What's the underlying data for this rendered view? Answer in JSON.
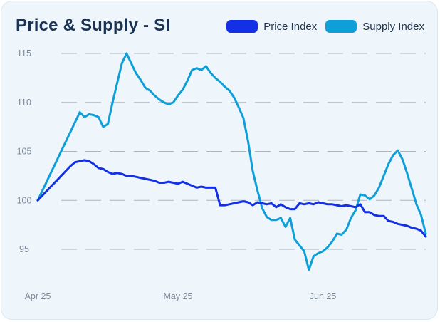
{
  "chart_data": {
    "type": "line",
    "title": "Price & Supply - SI",
    "xlabel": "",
    "ylabel": "",
    "ylim": [
      92,
      116
    ],
    "yticks": [
      95,
      100,
      105,
      110,
      115
    ],
    "xticks": [
      {
        "label": "Apr 25",
        "x": 0
      },
      {
        "label": "May 25",
        "x": 30
      },
      {
        "label": "Jun 25",
        "x": 61
      }
    ],
    "xlim": [
      0,
      90
    ],
    "grid": "horizontal dashed",
    "legend_position": "top-right",
    "series": [
      {
        "name": "Price Index",
        "color": "#1330e6",
        "points": [
          [
            0,
            100.0
          ],
          [
            1,
            100.5
          ],
          [
            2,
            101.0
          ],
          [
            3,
            101.5
          ],
          [
            4,
            102.0
          ],
          [
            5,
            102.5
          ],
          [
            6,
            103.0
          ],
          [
            7,
            103.5
          ],
          [
            8,
            103.9
          ],
          [
            9,
            104.0
          ],
          [
            10,
            104.1
          ],
          [
            11,
            104.0
          ],
          [
            12,
            103.7
          ],
          [
            13,
            103.3
          ],
          [
            14,
            103.2
          ],
          [
            15,
            102.9
          ],
          [
            16,
            102.7
          ],
          [
            17,
            102.8
          ],
          [
            18,
            102.7
          ],
          [
            19,
            102.5
          ],
          [
            20,
            102.5
          ],
          [
            21,
            102.4
          ],
          [
            22,
            102.3
          ],
          [
            23,
            102.2
          ],
          [
            24,
            102.1
          ],
          [
            25,
            102.0
          ],
          [
            26,
            101.8
          ],
          [
            27,
            101.8
          ],
          [
            28,
            101.9
          ],
          [
            29,
            101.8
          ],
          [
            30,
            101.7
          ],
          [
            31,
            101.9
          ],
          [
            32,
            101.7
          ],
          [
            33,
            101.5
          ],
          [
            34,
            101.3
          ],
          [
            35,
            101.4
          ],
          [
            36,
            101.3
          ],
          [
            37,
            101.3
          ],
          [
            38,
            101.3
          ],
          [
            39,
            99.5
          ],
          [
            40,
            99.5
          ],
          [
            41,
            99.6
          ],
          [
            42,
            99.7
          ],
          [
            43,
            99.8
          ],
          [
            44,
            99.9
          ],
          [
            45,
            99.8
          ],
          [
            46,
            99.5
          ],
          [
            47,
            99.8
          ],
          [
            48,
            99.7
          ],
          [
            49,
            99.6
          ],
          [
            50,
            99.7
          ],
          [
            51,
            99.3
          ],
          [
            52,
            99.6
          ],
          [
            53,
            99.3
          ],
          [
            54,
            99.1
          ],
          [
            55,
            99.1
          ],
          [
            56,
            99.7
          ],
          [
            57,
            99.6
          ],
          [
            58,
            99.7
          ],
          [
            59,
            99.6
          ],
          [
            60,
            99.8
          ],
          [
            61,
            99.7
          ],
          [
            62,
            99.6
          ],
          [
            63,
            99.6
          ],
          [
            64,
            99.5
          ],
          [
            65,
            99.4
          ],
          [
            66,
            99.5
          ],
          [
            67,
            99.4
          ],
          [
            68,
            99.3
          ],
          [
            69,
            99.6
          ],
          [
            70,
            98.8
          ],
          [
            71,
            98.8
          ],
          [
            72,
            98.5
          ],
          [
            73,
            98.4
          ],
          [
            74,
            98.4
          ],
          [
            75,
            97.9
          ],
          [
            76,
            97.8
          ],
          [
            77,
            97.6
          ],
          [
            78,
            97.5
          ],
          [
            79,
            97.4
          ],
          [
            80,
            97.2
          ],
          [
            81,
            97.1
          ],
          [
            82,
            96.9
          ],
          [
            83,
            96.3
          ]
        ]
      },
      {
        "name": "Supply Index",
        "color": "#0e9fd8",
        "points": [
          [
            0,
            100.0
          ],
          [
            1,
            101.0
          ],
          [
            2,
            102.0
          ],
          [
            3,
            103.0
          ],
          [
            4,
            104.0
          ],
          [
            5,
            105.0
          ],
          [
            6,
            106.0
          ],
          [
            7,
            107.0
          ],
          [
            8,
            108.0
          ],
          [
            9,
            109.0
          ],
          [
            10,
            108.5
          ],
          [
            11,
            108.8
          ],
          [
            12,
            108.7
          ],
          [
            13,
            108.5
          ],
          [
            14,
            107.5
          ],
          [
            15,
            107.8
          ],
          [
            16,
            110.0
          ],
          [
            17,
            112.0
          ],
          [
            18,
            114.0
          ],
          [
            19,
            115.0
          ],
          [
            20,
            114.0
          ],
          [
            21,
            113.0
          ],
          [
            22,
            112.3
          ],
          [
            23,
            111.5
          ],
          [
            24,
            111.2
          ],
          [
            25,
            110.7
          ],
          [
            26,
            110.3
          ],
          [
            27,
            110.0
          ],
          [
            28,
            109.8
          ],
          [
            29,
            110.0
          ],
          [
            30,
            110.7
          ],
          [
            31,
            111.3
          ],
          [
            32,
            112.2
          ],
          [
            33,
            113.3
          ],
          [
            34,
            113.5
          ],
          [
            35,
            113.3
          ],
          [
            36,
            113.7
          ],
          [
            37,
            113.0
          ],
          [
            38,
            112.5
          ],
          [
            39,
            112.1
          ],
          [
            40,
            111.6
          ],
          [
            41,
            111.2
          ],
          [
            42,
            110.5
          ],
          [
            43,
            109.5
          ],
          [
            44,
            108.4
          ],
          [
            45,
            106.0
          ],
          [
            46,
            103.0
          ],
          [
            47,
            101.0
          ],
          [
            48,
            99.2
          ],
          [
            49,
            98.3
          ],
          [
            50,
            98.0
          ],
          [
            51,
            98.0
          ],
          [
            52,
            98.2
          ],
          [
            53,
            97.3
          ],
          [
            54,
            98.2
          ],
          [
            55,
            96.0
          ],
          [
            56,
            95.4
          ],
          [
            57,
            94.8
          ],
          [
            58,
            92.9
          ],
          [
            59,
            94.3
          ],
          [
            60,
            94.6
          ],
          [
            61,
            94.8
          ],
          [
            62,
            95.2
          ],
          [
            63,
            95.8
          ],
          [
            64,
            96.6
          ],
          [
            65,
            96.5
          ],
          [
            66,
            97.0
          ],
          [
            67,
            98.2
          ],
          [
            68,
            99.0
          ],
          [
            69,
            100.6
          ],
          [
            70,
            100.5
          ],
          [
            71,
            100.1
          ],
          [
            72,
            100.5
          ],
          [
            73,
            101.3
          ],
          [
            74,
            102.5
          ],
          [
            75,
            103.7
          ],
          [
            76,
            104.6
          ],
          [
            77,
            105.1
          ],
          [
            78,
            104.2
          ],
          [
            79,
            102.8
          ],
          [
            80,
            101.2
          ],
          [
            81,
            99.6
          ],
          [
            82,
            98.5
          ],
          [
            83,
            96.6
          ]
        ]
      }
    ]
  }
}
